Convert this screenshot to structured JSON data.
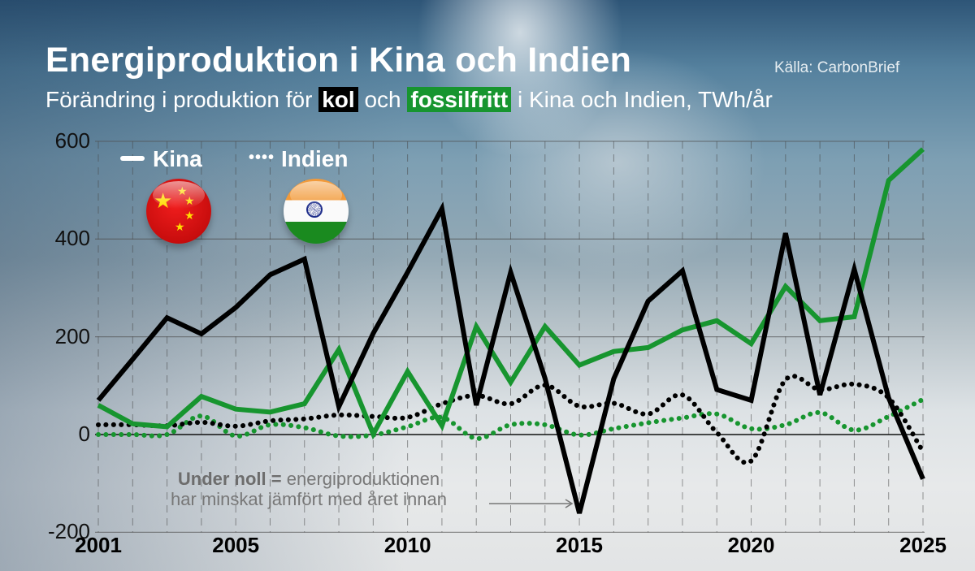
{
  "header": {
    "title": "Energiproduktion i Kina och Indien",
    "source": "Källa: CarbonBrief",
    "subtitle_prefix": "Förändring i produktion för",
    "subtitle_kol": "kol",
    "subtitle_mid": "och",
    "subtitle_fossilfree": "fossilfritt",
    "subtitle_suffix": "i Kina och Indien, TWh/år"
  },
  "legend": {
    "china_label": "Kina",
    "india_label": "Indien",
    "china_style": "solid",
    "india_style": "dotted",
    "china_flag_icon": "china-flag-icon",
    "india_flag_icon": "india-flag-icon"
  },
  "annotation": {
    "bold": "Under noll =",
    "line1": "energiproduktionen",
    "line2": "har minskat jämfört med året innan"
  },
  "colors": {
    "coal": "#000000",
    "fossil_free": "#17952f",
    "title": "#ffffff"
  },
  "axes": {
    "y_ticks": [
      "600",
      "400",
      "200",
      "0",
      "-200"
    ],
    "x_ticks": [
      "2001",
      "2005",
      "2010",
      "2015",
      "2020",
      "2025"
    ]
  },
  "chart_data": {
    "type": "line",
    "title": "Energiproduktion i Kina och Indien",
    "subtitle": "Förändring i produktion för kol och fossilfritt i Kina och Indien, TWh/år",
    "xlabel": "",
    "ylabel": "TWh/år",
    "ylim": [
      -200,
      600
    ],
    "xlim": [
      2001,
      2025
    ],
    "grid": true,
    "legend_position": "top-left",
    "x": [
      2001,
      2002,
      2003,
      2004,
      2005,
      2006,
      2007,
      2008,
      2009,
      2010,
      2011,
      2012,
      2013,
      2014,
      2015,
      2016,
      2017,
      2018,
      2019,
      2020,
      2021,
      2022,
      2023,
      2024,
      2025
    ],
    "series": [
      {
        "name": "Kina kol",
        "style": "solid",
        "color": "#000000",
        "values": [
          70,
          154,
          239,
          206,
          260,
          327,
          359,
          57,
          207,
          332,
          462,
          60,
          332,
          115,
          -161,
          114,
          273,
          335,
          92,
          70,
          412,
          81,
          338,
          75,
          -91
        ]
      },
      {
        "name": "Kina fossilfritt",
        "style": "solid",
        "color": "#17952f",
        "values": [
          60,
          22,
          16,
          78,
          52,
          46,
          63,
          174,
          1,
          129,
          18,
          221,
          107,
          221,
          142,
          170,
          178,
          214,
          233,
          186,
          303,
          233,
          241,
          520,
          584
        ]
      },
      {
        "name": "Indien kol",
        "style": "dotted",
        "color": "#000000",
        "values": [
          20,
          20,
          18,
          25,
          17,
          28,
          32,
          40,
          37,
          35,
          63,
          80,
          63,
          101,
          58,
          64,
          42,
          81,
          4,
          -54,
          112,
          92,
          103,
          75,
          -35
        ]
      },
      {
        "name": "Indien fossilfritt",
        "style": "dotted",
        "color": "#17952f",
        "values": [
          0,
          0,
          0,
          38,
          -3,
          20,
          14,
          -3,
          -1,
          16,
          35,
          -8,
          20,
          20,
          -1,
          12,
          24,
          34,
          42,
          12,
          20,
          45,
          9,
          37,
          72
        ]
      }
    ],
    "annotations": [
      "Under noll = energiproduktionen har minskat jämfört med året innan"
    ]
  }
}
